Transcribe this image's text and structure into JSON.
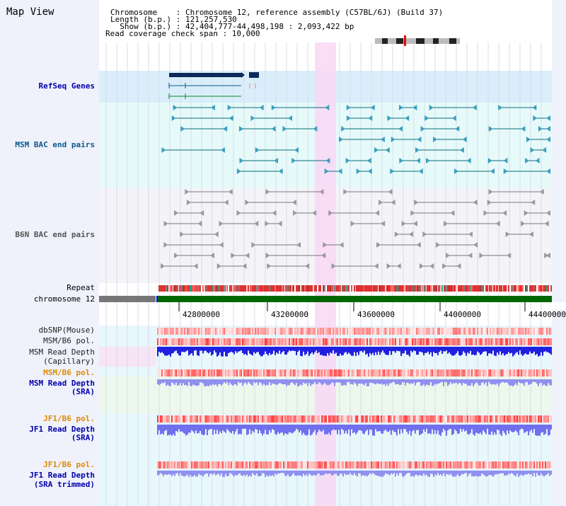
{
  "app": {
    "title": "Map View"
  },
  "info": {
    "chromosome": "Chromosome    : Chromosome 12, reference assembly (C57BL/6J) (Build 37)",
    "length": "Length (b.p.) : 121,257,530",
    "show": "  Show (b.p.) : 42,404,777-44,498,198 : 2,093,422 bp",
    "coverage": "Read coverage check span : 10,000"
  },
  "tracks": {
    "refseq": "RefSeq Genes",
    "msm_bac": "MSM BAC end pairs",
    "b6n_bac": "B6N BAC end pairs",
    "repeat": "Repeat",
    "chrom": "chromosome 12",
    "dbsnp": "dbSNP(Mouse)",
    "msm_b6_pol_1": "MSM/B6 pol.",
    "msm_rd_cap_1": "MSM Read Depth",
    "msm_rd_cap_2": "(Capillary)",
    "msm_b6_pol_2": "MSM/B6 pol.",
    "msm_rd_sra_1": "MSM Read Depth",
    "msm_rd_sra_2": "(SRA)",
    "jf1_b6_pol_1": "JF1/B6 pol.",
    "jf1_rd_sra_1": "JF1 Read Depth",
    "jf1_rd_sra_2": "(SRA)",
    "jf1_b6_pol_2": "JF1/B6 pol.",
    "jf1_rd_trim_1": "JF1 Read Depth",
    "jf1_rd_trim_2": "(SRA trimmed)"
  },
  "axis": {
    "ticks": [
      "42800000",
      "43200000",
      "43600000",
      "44000000",
      "44400000"
    ]
  },
  "colors": {
    "side": "#eff1fb",
    "refseq_bg": "#d9eefa",
    "msm_bg": "#e6fafa",
    "b6n_bg": "#f4f4f8",
    "highlight": "#f8d8f4",
    "chrom": "#006600",
    "msm_label": "#0a5a8a",
    "pol_label": "#e08a00",
    "depth_label": "#0000aa"
  }
}
